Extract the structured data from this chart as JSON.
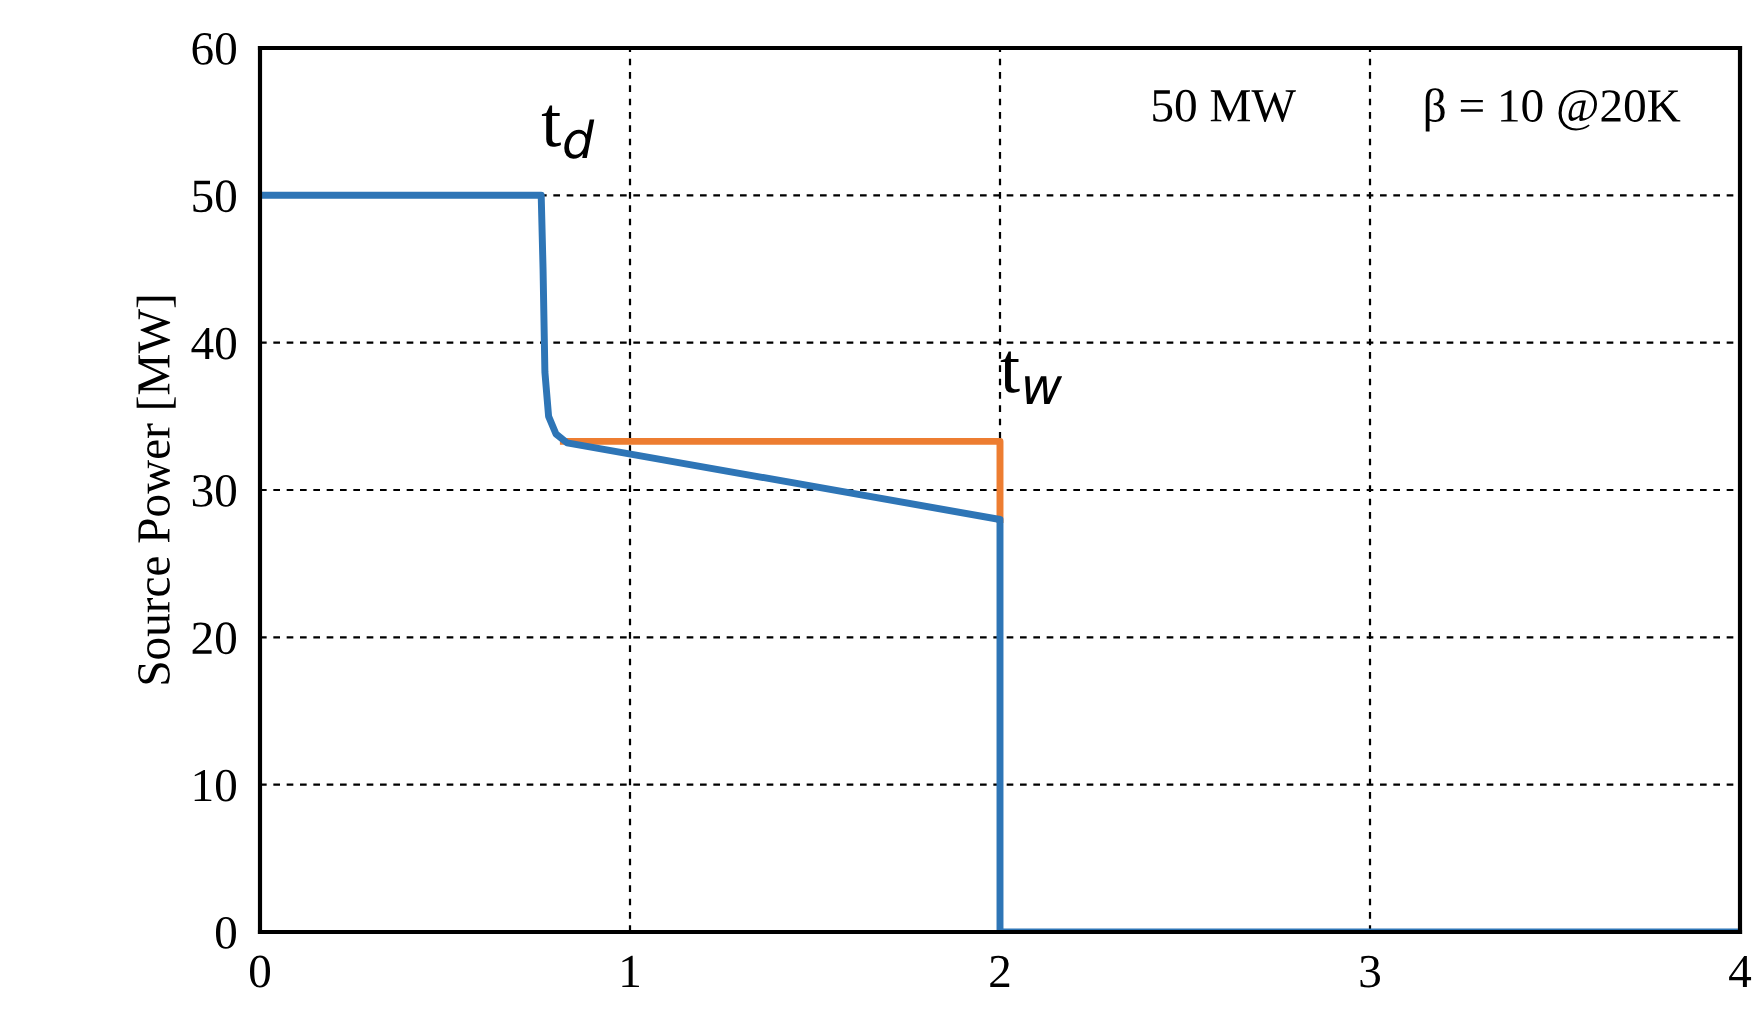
{
  "chart_data": {
    "type": "line",
    "ylabel": "Source Power [MW]",
    "xlim": [
      0,
      4
    ],
    "ylim": [
      0,
      60
    ],
    "xticks": [
      0,
      1,
      2,
      3,
      4
    ],
    "yticks": [
      0,
      10,
      20,
      30,
      40,
      50,
      60
    ],
    "grid": true,
    "line_style": "solid",
    "marker": "none",
    "series": [
      {
        "color": "#ed7d31",
        "x": [
          0.82,
          2.0,
          2.0
        ],
        "values": [
          33.3,
          33.3,
          28.0
        ]
      },
      {
        "color": "#2e75b6",
        "x": [
          0,
          0.76,
          0.765,
          0.77,
          0.78,
          0.8,
          0.83,
          2.0,
          2.0,
          4
        ],
        "values": [
          50,
          50,
          45,
          38,
          35,
          33.8,
          33.2,
          28.0,
          0,
          0
        ]
      }
    ],
    "annotations": [
      {
        "text": "t$_{d}$",
        "x": 0.76,
        "y": 50
      },
      {
        "text": "t$_{w}$",
        "x": 2.0,
        "y": 33.3
      },
      "50 MW",
      "β = 10 @20K"
    ]
  }
}
